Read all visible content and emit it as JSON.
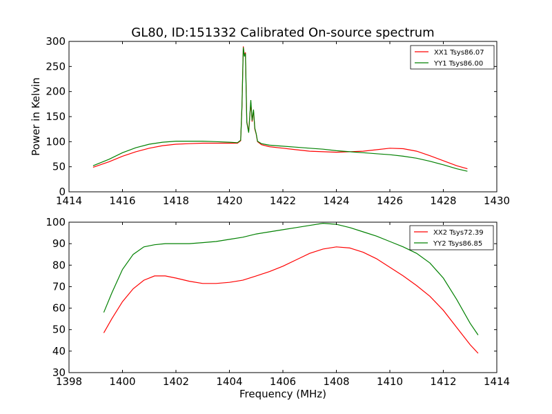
{
  "title": "GL80, ID:151332 Calibrated On-source spectrum",
  "colors": {
    "red": "#ff0000",
    "green": "#008000"
  },
  "chart_data": [
    {
      "type": "line",
      "xlim": [
        1414,
        1430
      ],
      "ylim": [
        0,
        300
      ],
      "xticks": [
        "1414",
        "1416",
        "1418",
        "1420",
        "1422",
        "1424",
        "1426",
        "1428",
        "1430"
      ],
      "yticks": [
        "0",
        "50",
        "100",
        "150",
        "200",
        "250",
        "300"
      ],
      "xlabel": "",
      "ylabel": "Power in Kelvin",
      "legend": "top-right",
      "series": [
        {
          "name": "XX1 Tsys86.07",
          "color": "#ff0000",
          "x": [
            1414.9,
            1415.5,
            1416,
            1416.5,
            1417,
            1417.5,
            1418,
            1418.5,
            1419,
            1419.5,
            1420,
            1420.3,
            1420.42,
            1420.47,
            1420.52,
            1420.56,
            1420.6,
            1420.65,
            1420.72,
            1420.8,
            1420.85,
            1420.9,
            1420.95,
            1421.0,
            1421.05,
            1421.2,
            1421.5,
            1422,
            1422.5,
            1423,
            1423.5,
            1424,
            1424.5,
            1425,
            1425.5,
            1426,
            1426.5,
            1427,
            1427.5,
            1428,
            1428.5,
            1428.9
          ],
          "y": [
            49,
            60,
            71,
            80,
            87,
            92,
            95,
            96,
            97,
            97,
            97,
            97,
            102,
            170,
            290,
            272,
            278,
            140,
            120,
            178,
            140,
            162,
            125,
            115,
            100,
            94,
            90,
            87,
            84,
            81,
            80,
            79,
            80,
            81,
            84,
            87,
            86,
            81,
            72,
            62,
            52,
            46
          ]
        },
        {
          "name": "YY1 Tsys86.00",
          "color": "#008000",
          "x": [
            1414.9,
            1415.5,
            1416,
            1416.5,
            1417,
            1417.5,
            1418,
            1418.5,
            1419,
            1419.5,
            1420,
            1420.3,
            1420.42,
            1420.47,
            1420.52,
            1420.56,
            1420.6,
            1420.65,
            1420.72,
            1420.8,
            1420.85,
            1420.9,
            1420.95,
            1421.0,
            1421.05,
            1421.2,
            1421.5,
            1422,
            1422.5,
            1423,
            1423.5,
            1424,
            1424.5,
            1425,
            1425.5,
            1426,
            1426.5,
            1427,
            1427.5,
            1428,
            1428.5,
            1428.9
          ],
          "y": [
            52,
            65,
            78,
            88,
            95,
            99,
            101,
            101,
            101,
            100,
            99,
            98,
            103,
            172,
            288,
            270,
            276,
            138,
            118,
            183,
            142,
            164,
            127,
            116,
            101,
            96,
            93,
            91,
            89,
            87,
            85,
            82,
            80,
            78,
            76,
            74,
            71,
            67,
            61,
            54,
            46,
            41
          ]
        }
      ]
    },
    {
      "type": "line",
      "xlim": [
        1398,
        1414
      ],
      "ylim": [
        30,
        100
      ],
      "xticks": [
        "1398",
        "1400",
        "1402",
        "1404",
        "1406",
        "1408",
        "1410",
        "1412",
        "1414"
      ],
      "yticks": [
        "30",
        "40",
        "50",
        "60",
        "70",
        "80",
        "90",
        "100"
      ],
      "xlabel": "Frequency (MHz)",
      "ylabel": "",
      "legend": "top-right",
      "series": [
        {
          "name": "XX2 Tsys72.39",
          "color": "#ff0000",
          "x": [
            1399.3,
            1399.6,
            1400,
            1400.4,
            1400.8,
            1401.2,
            1401.6,
            1402,
            1402.5,
            1403,
            1403.5,
            1404,
            1404.5,
            1405,
            1405.5,
            1406,
            1406.5,
            1407,
            1407.5,
            1408,
            1408.5,
            1409,
            1409.5,
            1410,
            1410.5,
            1411,
            1411.5,
            1412,
            1412.5,
            1413,
            1413.3
          ],
          "y": [
            48.5,
            55,
            63,
            69,
            73,
            75,
            75,
            74,
            72.5,
            71.5,
            71.5,
            72,
            73,
            75,
            77,
            79.5,
            82.5,
            85.5,
            87.5,
            88.5,
            88,
            86,
            83,
            79,
            75,
            70.5,
            65.5,
            59,
            51,
            43,
            39
          ]
        },
        {
          "name": "YY2 Tsys86.85",
          "color": "#008000",
          "x": [
            1399.3,
            1399.6,
            1400,
            1400.4,
            1400.8,
            1401.2,
            1401.6,
            1402,
            1402.5,
            1403,
            1403.5,
            1404,
            1404.5,
            1405,
            1405.5,
            1406,
            1406.5,
            1407,
            1407.5,
            1408,
            1408.5,
            1409,
            1409.5,
            1410,
            1410.5,
            1411,
            1411.5,
            1412,
            1412.5,
            1413,
            1413.3
          ],
          "y": [
            58,
            67,
            78,
            85,
            88.5,
            89.5,
            90,
            90,
            90,
            90.5,
            91,
            92,
            93,
            94.5,
            95.5,
            96.5,
            97.5,
            98.5,
            99.5,
            99,
            97.5,
            95.5,
            93.5,
            91,
            88.5,
            85.5,
            81,
            74,
            64,
            53,
            47.5
          ]
        }
      ]
    }
  ]
}
